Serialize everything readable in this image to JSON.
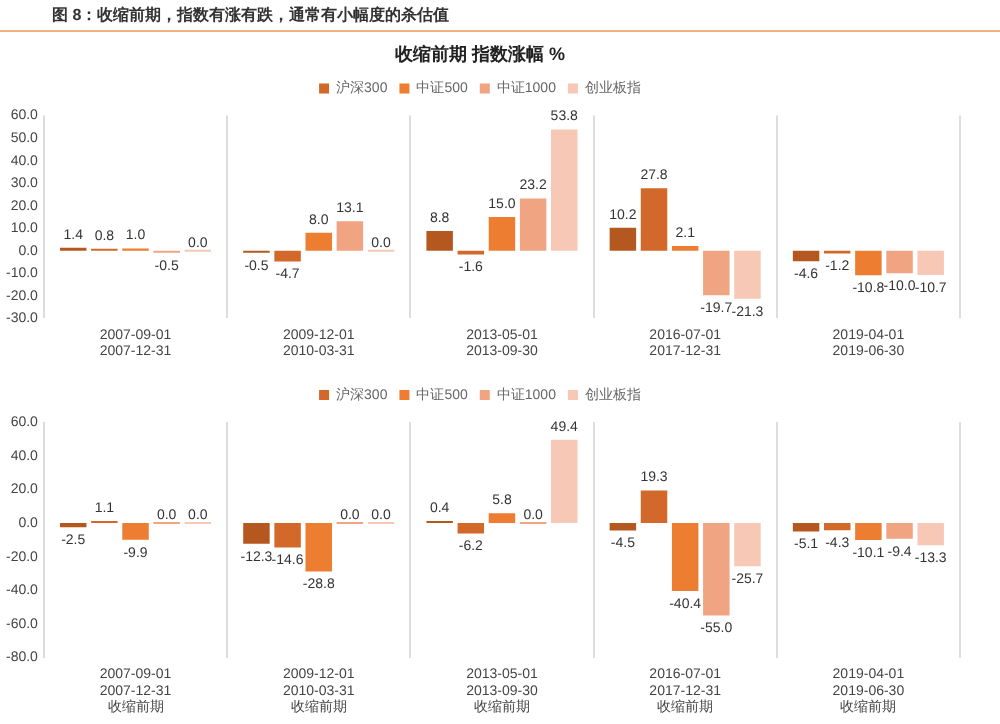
{
  "chart_data": [
    {
      "type": "bar",
      "title": "收缩前期 指数涨幅 %",
      "annotations": [
        "图 8：收缩前期，指数有涨有跌，通常有小幅度的杀估值"
      ],
      "categories": [
        "2007-09-01\n2007-12-31",
        "2009-12-01\n2010-03-31",
        "2013-05-01\n2013-09-30",
        "2016-07-01\n2017-12-31",
        "2019-04-01\n2019-06-30"
      ],
      "series": [
        {
          "color": "#b5581f",
          "values": [
            1.4,
            -0.5,
            8.8,
            10.2,
            -4.6
          ],
          "value_labels": [
            "1.4",
            "-0.5",
            "8.8",
            "10.2",
            "-4.6"
          ]
        },
        {
          "name": "沪深300",
          "color": "#d2692a",
          "values": [
            0.8,
            -4.7,
            -1.6,
            27.8,
            -1.2
          ],
          "value_labels": [
            "0.8",
            "-4.7",
            "-1.6",
            "27.8",
            "-1.2"
          ]
        },
        {
          "name": "中证500",
          "color": "#ed7d31",
          "values": [
            1.0,
            8.0,
            15.0,
            2.1,
            -10.8
          ],
          "value_labels": [
            "1.0",
            "8.0",
            "15.0",
            "2.1",
            "-10.8"
          ]
        },
        {
          "name": "中证1000",
          "color": "#f0a482",
          "values": [
            -0.5,
            13.1,
            23.2,
            -19.7,
            -10.0
          ],
          "value_labels": [
            "-0.5",
            "13.1",
            "23.2",
            "-19.7",
            "-10.0"
          ]
        },
        {
          "name": "创业板指",
          "color": "#f6c8b5",
          "values": [
            0.0,
            0.0,
            53.8,
            -21.3,
            -10.7
          ],
          "value_labels": [
            "0.0",
            "0.0",
            "53.8",
            "-21.3",
            "-10.7"
          ]
        }
      ],
      "ylim": [
        -30,
        60
      ],
      "yticks": [
        {
          "value": -30,
          "label": "-30.0"
        },
        {
          "value": -20,
          "label": "-20.0"
        },
        {
          "value": -10,
          "label": "-10.0"
        },
        {
          "value": 0,
          "label": "0.0"
        },
        {
          "value": 10,
          "label": "10.0"
        },
        {
          "value": 20,
          "label": "20.0"
        },
        {
          "value": 30,
          "label": "30.0"
        },
        {
          "value": 40,
          "label": "40.0"
        },
        {
          "value": 50,
          "label": "50.0"
        },
        {
          "value": 60,
          "label": "60.0"
        }
      ],
      "grid": "x",
      "legend": "top"
    },
    {
      "type": "bar",
      "categories": [
        "2007-09-01\n2007-12-31\n收缩前期",
        "2009-12-01\n2010-03-31\n收缩前期",
        "2013-05-01\n2013-09-30\n收缩前期",
        "2016-07-01\n2017-12-31\n收缩前期",
        "2019-04-01\n2019-06-30\n收缩前期"
      ],
      "series": [
        {
          "color": "#b5581f",
          "values": [
            -2.5,
            -12.3,
            0.4,
            -4.5,
            -5.1
          ],
          "value_labels": [
            "-2.5",
            "-12.3",
            "0.4",
            "-4.5",
            "-5.1"
          ]
        },
        {
          "name": "沪深300",
          "color": "#d2692a",
          "values": [
            1.1,
            -14.6,
            -6.2,
            19.3,
            -4.3
          ],
          "value_labels": [
            "1.1",
            "-14.6",
            "-6.2",
            "19.3",
            "-4.3"
          ]
        },
        {
          "name": "中证500",
          "color": "#ed7d31",
          "values": [
            -9.9,
            -28.8,
            5.8,
            -40.4,
            -10.1
          ],
          "value_labels": [
            "-9.9",
            "-28.8",
            "5.8",
            "-40.4",
            "-10.1"
          ]
        },
        {
          "name": "中证1000",
          "color": "#f0a482",
          "values": [
            0.0,
            0.0,
            0.0,
            -55.0,
            -9.4
          ],
          "value_labels": [
            "0.0",
            "0.0",
            "0.0",
            "-55.0",
            "-9.4"
          ]
        },
        {
          "name": "创业板指",
          "color": "#f6c8b5",
          "values": [
            0.0,
            0.0,
            49.4,
            -25.7,
            -13.3
          ],
          "value_labels": [
            "0.0",
            "0.0",
            "49.4",
            "-25.7",
            "-13.3"
          ]
        }
      ],
      "ylim": [
        -80,
        60
      ],
      "yticks": [
        {
          "value": -80,
          "label": "-80.0"
        },
        {
          "value": -60,
          "label": "-60.0"
        },
        {
          "value": -40,
          "label": "-40.0"
        },
        {
          "value": -20,
          "label": "-20.0"
        },
        {
          "value": 0,
          "label": "0.0"
        },
        {
          "value": 20,
          "label": "20.0"
        },
        {
          "value": 40,
          "label": "40.0"
        },
        {
          "value": 60,
          "label": "60.0"
        }
      ],
      "grid": "x",
      "legend": "top"
    }
  ]
}
